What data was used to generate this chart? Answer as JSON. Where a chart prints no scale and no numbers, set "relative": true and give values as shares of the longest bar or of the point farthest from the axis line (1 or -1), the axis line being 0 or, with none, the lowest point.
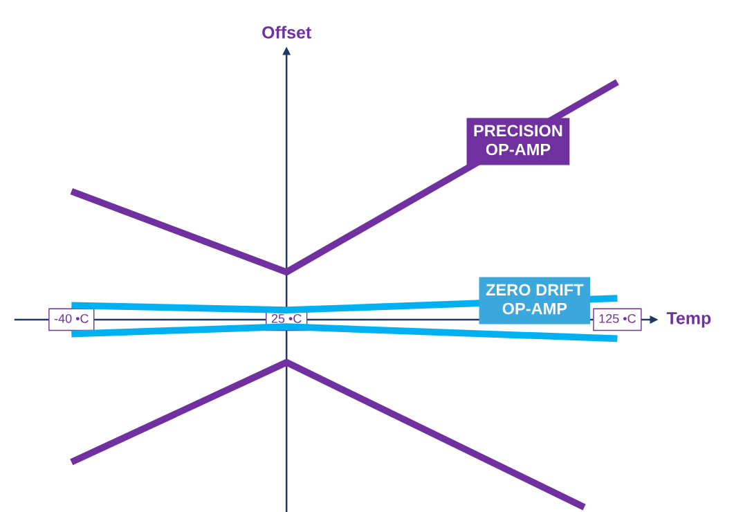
{
  "chart_data": {
    "type": "line",
    "relative": true,
    "xlabel": "Temp",
    "ylabel": "Offset",
    "x": [
      -40,
      25,
      125
    ],
    "xlim": [
      -57,
      136
    ],
    "xticks": [
      {
        "value": -40,
        "label": "-40 •C"
      },
      {
        "value": 25,
        "label": "25 •C"
      },
      {
        "value": 125,
        "label": "125 •C"
      }
    ],
    "series": [
      {
        "color": "#7030a0",
        "values": [
          0.54,
          0.2,
          1
        ]
      },
      {
        "color": "#7030a0",
        "x": [
          -40,
          25,
          115
        ],
        "values": [
          -0.6,
          -0.18,
          -0.79
        ]
      },
      {
        "color": "#00b0f0",
        "values": [
          0.06,
          0.04,
          0.09
        ]
      },
      {
        "color": "#00b0f0",
        "values": [
          -0.06,
          -0.03,
          -0.08
        ]
      }
    ],
    "ref_lines": [
      {
        "axis": "x",
        "value": 25,
        "color": "#1f3864"
      }
    ],
    "annotations": [
      {
        "text": "PRECISION\nOP-AMP",
        "x": 95,
        "y": 0.75
      },
      {
        "text": "ZERO DRIFT\nOP-AMP",
        "x": 100,
        "y": 0.08
      }
    ],
    "grid": false,
    "legend": false,
    "marker": "none",
    "line_style": "solid"
  }
}
